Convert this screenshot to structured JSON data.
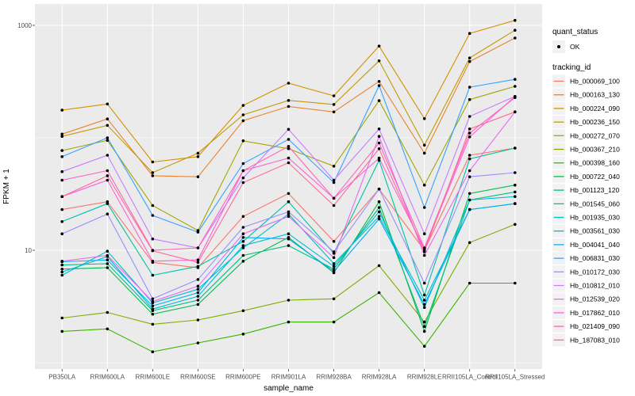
{
  "chart_data": {
    "type": "line",
    "title": "",
    "xlabel": "sample_name",
    "ylabel": "FPKM + 1",
    "y_scale": "log10",
    "ylim": [
      0.9,
      1550
    ],
    "y_ticks": [
      {
        "value": 10,
        "label": "10"
      },
      {
        "value": 1000,
        "label": "1000"
      }
    ],
    "y_minor_gridlines": [
      1,
      100
    ],
    "grid": true,
    "panel_bg": "#EBEBEB",
    "gridline_color": "#FFFFFF",
    "point_color": "#000000",
    "categories": [
      "PB350LA",
      "RRIM600LA",
      "RRIM600LE",
      "RRIM600SE",
      "RRIM600PE",
      "RRIM901LA",
      "RRIM928BA",
      "RRIM928LA",
      "RRIM928LE",
      "RRII105LA_Control",
      "RRII105LA_Stressed"
    ],
    "series": [
      {
        "name": "Hb_000069_100",
        "color": "#F8766D",
        "values": [
          23,
          27,
          7.8,
          7.0,
          20,
          32,
          12,
          35,
          10,
          70,
          81
        ]
      },
      {
        "name": "Hb_000163_130",
        "color": "#EA8331",
        "values": [
          108,
          147,
          46,
          45,
          142,
          190,
          170,
          317,
          73,
          477,
          772
        ]
      },
      {
        "name": "Hb_000224_090",
        "color": "#D89000",
        "values": [
          176,
          200,
          61,
          68,
          194,
          306,
          236,
          654,
          148,
          847,
          1107
        ]
      },
      {
        "name": "Hb_000236_150",
        "color": "#C09B00",
        "values": [
          103,
          129,
          49,
          73,
          160,
          215,
          198,
          484,
          86,
          513,
          905
        ]
      },
      {
        "name": "Hb_000272_070",
        "color": "#A3A500",
        "values": [
          77,
          95,
          25,
          15,
          94,
          80,
          56,
          214,
          38,
          219,
          287
        ]
      },
      {
        "name": "Hb_000367_210",
        "color": "#7CAE00",
        "values": [
          2.5,
          2.8,
          2.2,
          2.4,
          2.9,
          3.6,
          3.7,
          7.3,
          2.3,
          11.7,
          17
        ]
      },
      {
        "name": "Hb_000398_160",
        "color": "#39B600",
        "values": [
          1.9,
          2.0,
          1.25,
          1.5,
          1.8,
          2.3,
          2.3,
          4.2,
          1.4,
          5.1,
          5.1
        ]
      },
      {
        "name": "Hb_000722_040",
        "color": "#00BB4E",
        "values": [
          6.8,
          7.0,
          2.7,
          3.3,
          8,
          13,
          6.3,
          27,
          1.9,
          32,
          38
        ]
      },
      {
        "name": "Hb_001123_120",
        "color": "#00BF7D",
        "values": [
          7.4,
          7.6,
          2.9,
          3.6,
          9,
          11,
          6.8,
          24,
          2.1,
          28,
          33
        ]
      },
      {
        "name": "Hb_001545_060",
        "color": "#00C1A3",
        "values": [
          18,
          26,
          6.0,
          7.2,
          12,
          27,
          9.4,
          63,
          4.0,
          65,
          81
        ]
      },
      {
        "name": "Hb_001935_030",
        "color": "#00BFC4",
        "values": [
          6.0,
          9.8,
          3.4,
          4.5,
          10.5,
          21,
          7.6,
          20,
          3.6,
          23,
          26
        ]
      },
      {
        "name": "Hb_003561_030",
        "color": "#00BBDA",
        "values": [
          6.4,
          8.8,
          3.0,
          3.9,
          11,
          14,
          7.2,
          22,
          3.1,
          28,
          30
        ]
      },
      {
        "name": "Hb_004041_040",
        "color": "#00B0F6",
        "values": [
          7.9,
          8.2,
          3.2,
          4.2,
          13,
          12.6,
          6.5,
          19,
          3.3,
          23,
          26
        ]
      },
      {
        "name": "Hb_006831_030",
        "color": "#35A2FF",
        "values": [
          68,
          100,
          20.4,
          14.5,
          59,
          97,
          40,
          291,
          24,
          282,
          331
        ]
      },
      {
        "name": "Hb_010172_030",
        "color": "#9590FF",
        "values": [
          14,
          21,
          3.7,
          5.5,
          16,
          22,
          9.7,
          35,
          5.1,
          45,
          49
        ]
      },
      {
        "name": "Hb_010812_010",
        "color": "#C77CFF",
        "values": [
          50,
          70,
          12.6,
          10.5,
          44,
          119,
          42,
          120,
          14,
          155,
          233
        ]
      },
      {
        "name": "Hb_012539_020",
        "color": "#E76BF3",
        "values": [
          8.0,
          9.0,
          3.5,
          4.8,
          14,
          20,
          8.6,
          103,
          9.0,
          51,
          170
        ]
      },
      {
        "name": "Hb_017862_010",
        "color": "#FA62DB",
        "values": [
          30,
          42,
          8.0,
          8.2,
          51,
          66,
          29,
          66,
          10.3,
          102,
          233
        ]
      },
      {
        "name": "Hb_021409_090",
        "color": "#FF62BC",
        "values": [
          42,
          51,
          10,
          10.5,
          51,
          84,
          29,
          90,
          10.5,
          110,
          228
        ]
      },
      {
        "name": "Hb_187083_010",
        "color": "#FF6A98",
        "values": [
          30,
          46,
          9.9,
          7.8,
          40,
          60,
          25,
          80,
          9.7,
          120,
          170
        ]
      }
    ],
    "legend": {
      "position": "right",
      "quant_status_title": "quant_status",
      "quant_status_items": [
        {
          "label": "OK",
          "symbol": "point"
        }
      ],
      "tracking_title": "tracking_id",
      "key_bg": "#F2F2F2"
    }
  }
}
